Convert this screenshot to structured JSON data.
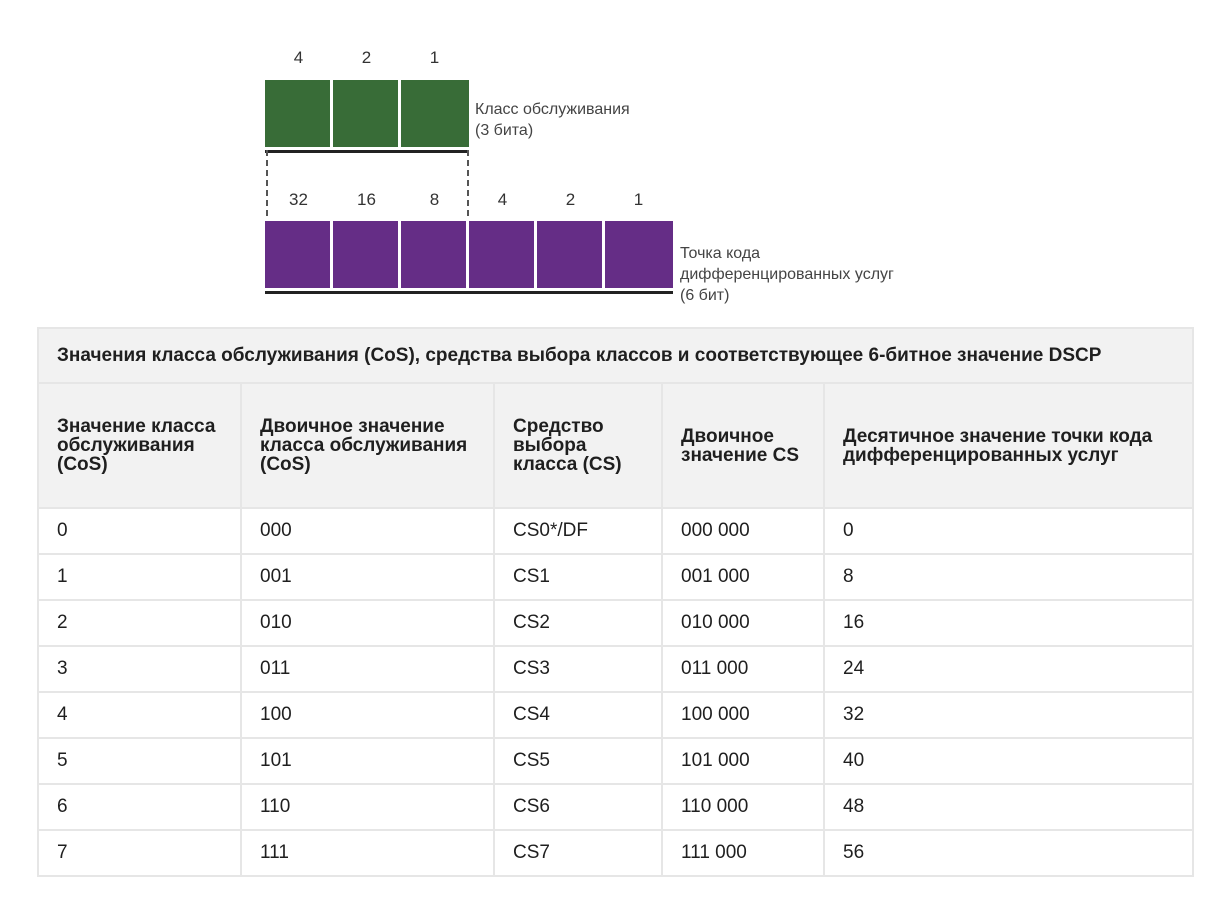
{
  "diagram": {
    "cos_bits": [
      "4",
      "2",
      "1"
    ],
    "cos_caption": [
      "Класс обслуживания",
      "(3 бита)"
    ],
    "dscp_bits": [
      "32",
      "16",
      "8",
      "4",
      "2",
      "1"
    ],
    "dscp_caption": [
      "Точка кода",
      "дифференцированных услуг",
      "(6 бит)"
    ],
    "colors": {
      "cos": "#386c37",
      "dscp": "#652d86"
    }
  },
  "table": {
    "title": "Значения класса обслуживания (CoS), средства выбора классов и соответствующее 6-битное значение DSCP",
    "headers": [
      "Значение класса обслуживания (CoS)",
      "Двоичное значение класса обслуживания (CoS)",
      "Средство выбора класса (CS)",
      "Двоичное значение CS",
      "Десятичное значение точки кода дифференцированных услуг"
    ],
    "rows": [
      [
        "0",
        "000",
        "CS0*/DF",
        "000 000",
        "0"
      ],
      [
        "1",
        "001",
        "CS1",
        "001 000",
        "8"
      ],
      [
        "2",
        "010",
        "CS2",
        "010 000",
        "16"
      ],
      [
        "3",
        "011",
        "CS3",
        "011 000",
        "24"
      ],
      [
        "4",
        "100",
        "CS4",
        "100 000",
        "32"
      ],
      [
        "5",
        "101",
        "CS5",
        "101 000",
        "40"
      ],
      [
        "6",
        "110",
        "CS6",
        "110 000",
        "48"
      ],
      [
        "7",
        "111",
        "CS7",
        "111 000",
        "56"
      ]
    ]
  }
}
